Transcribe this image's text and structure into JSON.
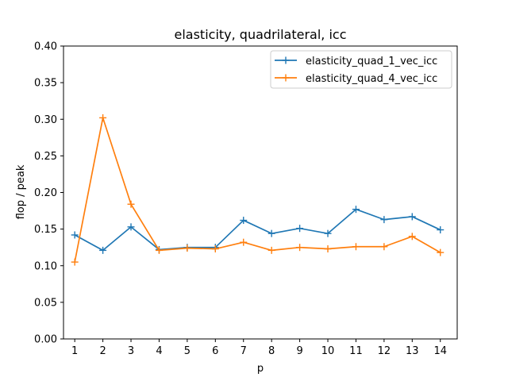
{
  "chart_data": {
    "type": "line",
    "title": "elasticity, quadrilateral, icc",
    "xlabel": "p",
    "ylabel": "flop / peak",
    "x": [
      1,
      2,
      3,
      4,
      5,
      6,
      7,
      8,
      9,
      10,
      11,
      12,
      13,
      14
    ],
    "xlim": [
      0.6,
      14.6
    ],
    "ylim": [
      0.0,
      0.4
    ],
    "yticks": [
      "0.00",
      "0.05",
      "0.10",
      "0.15",
      "0.20",
      "0.25",
      "0.30",
      "0.35",
      "0.40"
    ],
    "xticks": [
      "1",
      "2",
      "3",
      "4",
      "5",
      "6",
      "7",
      "8",
      "9",
      "10",
      "11",
      "12",
      "13",
      "14"
    ],
    "grid": false,
    "legend_position": "top-right",
    "marker": "+",
    "series": [
      {
        "name": "elasticity_quad_1_vec_icc",
        "color": "#1f77b4",
        "values": [
          0.142,
          0.121,
          0.153,
          0.122,
          0.125,
          0.125,
          0.162,
          0.144,
          0.151,
          0.144,
          0.177,
          0.163,
          0.167,
          0.149
        ]
      },
      {
        "name": "elasticity_quad_4_vec_icc",
        "color": "#ff7f0e",
        "values": [
          0.105,
          0.302,
          0.184,
          0.121,
          0.124,
          0.123,
          0.132,
          0.121,
          0.125,
          0.123,
          0.126,
          0.126,
          0.14,
          0.118
        ]
      }
    ]
  }
}
